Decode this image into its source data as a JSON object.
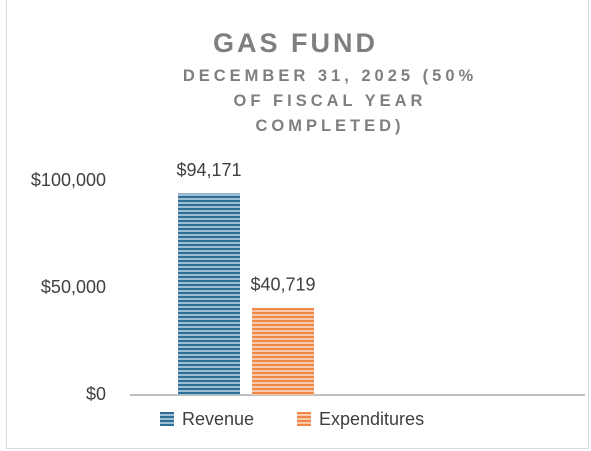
{
  "chart_data": {
    "type": "bar",
    "title": "GAS FUND",
    "subtitle": "DECEMBER 31, 2025 (50% OF FISCAL YEAR COMPLETED)",
    "categories": [
      null
    ],
    "series": [
      {
        "name": "Revenue",
        "color": "#2e6f99",
        "values": [
          94171
        ],
        "value_labels": [
          "$94,171"
        ]
      },
      {
        "name": "Expenditures",
        "color": "#f0884a",
        "values": [
          40719
        ],
        "value_labels": [
          "$40,719"
        ]
      }
    ],
    "ylim": [
      0,
      100000
    ],
    "yticks": [
      {
        "value": 0,
        "label": "$0"
      },
      {
        "value": 50000,
        "label": "$50,000"
      },
      {
        "value": 100000,
        "label": "$100,000"
      }
    ],
    "grid": false,
    "legend": "bottom"
  }
}
